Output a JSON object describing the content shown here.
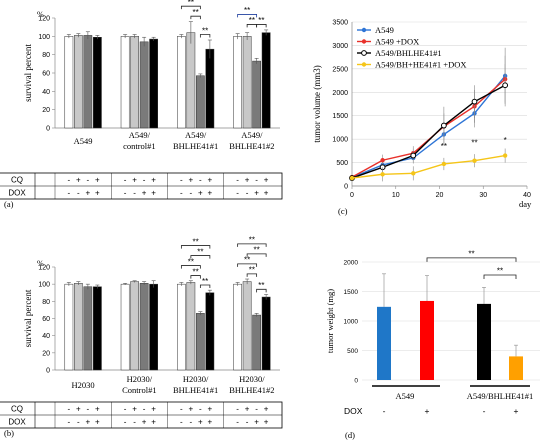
{
  "chart_data": [
    {
      "id": "a",
      "type": "bar",
      "panel_label": "(a)",
      "ylabel": "survival percent",
      "unit": "%",
      "ylim": [
        0,
        120
      ],
      "yticks": [
        0,
        20,
        40,
        60,
        80,
        100,
        120
      ],
      "group_labels": [
        [
          "A549"
        ],
        [
          "A549/",
          "control#1"
        ],
        [
          "A549/",
          "BHLHE41#1"
        ],
        [
          "A549/",
          "BHLHE41#2"
        ]
      ],
      "groups": [
        {
          "values": [
            100,
            101,
            101,
            99
          ],
          "errors": [
            2,
            2,
            4,
            2
          ]
        },
        {
          "values": [
            100,
            100,
            94,
            97
          ],
          "errors": [
            2,
            2,
            5,
            2
          ]
        },
        {
          "values": [
            100,
            104,
            57,
            86
          ],
          "errors": [
            2,
            12,
            2,
            10
          ]
        },
        {
          "values": [
            100,
            100,
            73,
            104
          ],
          "errors": [
            3,
            4,
            3,
            3
          ]
        }
      ],
      "bar_fills": [
        "#ffffff",
        "#c8c8c8",
        "#7a7a7a",
        "#000000"
      ],
      "significance": [
        {
          "group": 2,
          "from": 0,
          "to": 3,
          "label": "*"
        },
        {
          "group": 2,
          "from": 1,
          "to": 3,
          "label": "**"
        },
        {
          "group": 2,
          "from": 0,
          "to": 2,
          "label": "**"
        },
        {
          "group": 2,
          "from": 1,
          "to": 2,
          "label": "**"
        },
        {
          "group": 2,
          "from": 2,
          "to": 3,
          "label": "**"
        },
        {
          "group": 3,
          "from": 0,
          "to": 2,
          "label": "**"
        },
        {
          "group": 3,
          "from": 1,
          "to": 2,
          "label": "**"
        },
        {
          "group": 3,
          "from": 2,
          "to": 3,
          "label": "**"
        }
      ],
      "table": {
        "rows": [
          {
            "label": "CQ",
            "values": [
              "-",
              "+",
              "-",
              "+"
            ]
          },
          {
            "label": "DOX",
            "values": [
              "-",
              "-",
              "+",
              "+"
            ]
          }
        ]
      }
    },
    {
      "id": "b",
      "type": "bar",
      "panel_label": "(b)",
      "ylabel": "survival percent",
      "unit": "%",
      "ylim": [
        0,
        120
      ],
      "yticks": [
        0,
        20,
        40,
        60,
        80,
        100,
        120
      ],
      "group_labels": [
        [
          "H2030"
        ],
        [
          "H2030/",
          "Control#1"
        ],
        [
          "H2030/",
          "BHLHE41#1"
        ],
        [
          "H2030/",
          "BHLHE41#2"
        ]
      ],
      "groups": [
        {
          "values": [
            100,
            101,
            97,
            97
          ],
          "errors": [
            2,
            2,
            3,
            2
          ]
        },
        {
          "values": [
            100,
            103,
            101,
            100
          ],
          "errors": [
            1,
            1,
            2,
            4
          ]
        },
        {
          "values": [
            100,
            102,
            66,
            90
          ],
          "errors": [
            2,
            2,
            2,
            3
          ]
        },
        {
          "values": [
            100,
            103,
            64,
            85
          ],
          "errors": [
            2,
            3,
            2,
            3
          ]
        }
      ],
      "bar_fills": [
        "#ffffff",
        "#c8c8c8",
        "#7a7a7a",
        "#000000"
      ],
      "significance": [
        {
          "group": 2,
          "from": 0,
          "to": 3,
          "label": "**"
        },
        {
          "group": 2,
          "from": 1,
          "to": 3,
          "label": "**"
        },
        {
          "group": 2,
          "from": 0,
          "to": 2,
          "label": "**"
        },
        {
          "group": 2,
          "from": 1,
          "to": 2,
          "label": "**"
        },
        {
          "group": 2,
          "from": 2,
          "to": 3,
          "label": "**"
        },
        {
          "group": 3,
          "from": 0,
          "to": 3,
          "label": "**"
        },
        {
          "group": 3,
          "from": 1,
          "to": 3,
          "label": "**"
        },
        {
          "group": 3,
          "from": 0,
          "to": 2,
          "label": "**"
        },
        {
          "group": 3,
          "from": 1,
          "to": 2,
          "label": "**"
        },
        {
          "group": 3,
          "from": 2,
          "to": 3,
          "label": "**"
        }
      ],
      "table": {
        "rows": [
          {
            "label": "CQ",
            "values": [
              "-",
              "+",
              "-",
              "+"
            ]
          },
          {
            "label": "DOX",
            "values": [
              "-",
              "-",
              "+",
              "+"
            ]
          }
        ]
      }
    },
    {
      "id": "c",
      "type": "line",
      "panel_label": "(c)",
      "ylabel": "tumor volume (mm3)",
      "xlabel": "day",
      "xlim": [
        0,
        40
      ],
      "xticks": [
        0,
        10,
        20,
        30,
        40
      ],
      "ylim": [
        0,
        3500
      ],
      "yticks": [
        0,
        500,
        1000,
        1500,
        2000,
        2500,
        3000,
        3500
      ],
      "x": [
        0,
        7,
        14,
        21,
        28,
        35
      ],
      "series": [
        {
          "name": "A549",
          "color": "#2e75d6",
          "values": [
            180,
            450,
            600,
            1100,
            1550,
            2350
          ],
          "errors": [
            40,
            110,
            120,
            200,
            300,
            600
          ]
        },
        {
          "name": "A549 +DOX",
          "color": "#e8302a",
          "values": [
            190,
            550,
            700,
            1270,
            1700,
            2280
          ],
          "errors": [
            40,
            120,
            150,
            280,
            350,
            500
          ]
        },
        {
          "name": "A549/BHLHE41#1",
          "color": "#000000",
          "values": [
            170,
            400,
            650,
            1290,
            1800,
            2150
          ],
          "errors": [
            40,
            100,
            150,
            400,
            350,
            450
          ]
        },
        {
          "name": "A549/BH+HE41#1 +DOX",
          "color": "#f5c518",
          "values": [
            170,
            250,
            270,
            470,
            540,
            650
          ],
          "errors": [
            30,
            150,
            150,
            130,
            140,
            150
          ]
        }
      ],
      "annotations": [
        {
          "x": 21,
          "y": 790,
          "label": "**"
        },
        {
          "x": 28,
          "y": 860,
          "label": "**"
        },
        {
          "x": 35,
          "y": 920,
          "label": "*"
        }
      ]
    },
    {
      "id": "d",
      "type": "bar",
      "panel_label": "(d)",
      "ylabel": "tumor weight (mg)",
      "ylim": [
        0,
        2000
      ],
      "yticks": [
        0,
        500,
        1000,
        1500,
        2000
      ],
      "categories": [
        "A549 -",
        "A549 +",
        "A549/BHLHE41#1 -",
        "A549/BHLHE41#1 +"
      ],
      "values": [
        1240,
        1340,
        1290,
        400
      ],
      "errors": [
        560,
        430,
        280,
        190
      ],
      "colors": [
        "#1f77c8",
        "#ff0000",
        "#000000",
        "#ffa000"
      ],
      "group_labels": [
        "A549",
        "A549/BHLHE41#1"
      ],
      "dox_label": "DOX",
      "dox_values": [
        "-",
        "+",
        "-",
        "+"
      ],
      "significance": [
        {
          "from": 1,
          "to": 3,
          "label": "**"
        },
        {
          "from": 2,
          "to": 3,
          "label": "**"
        }
      ]
    }
  ]
}
